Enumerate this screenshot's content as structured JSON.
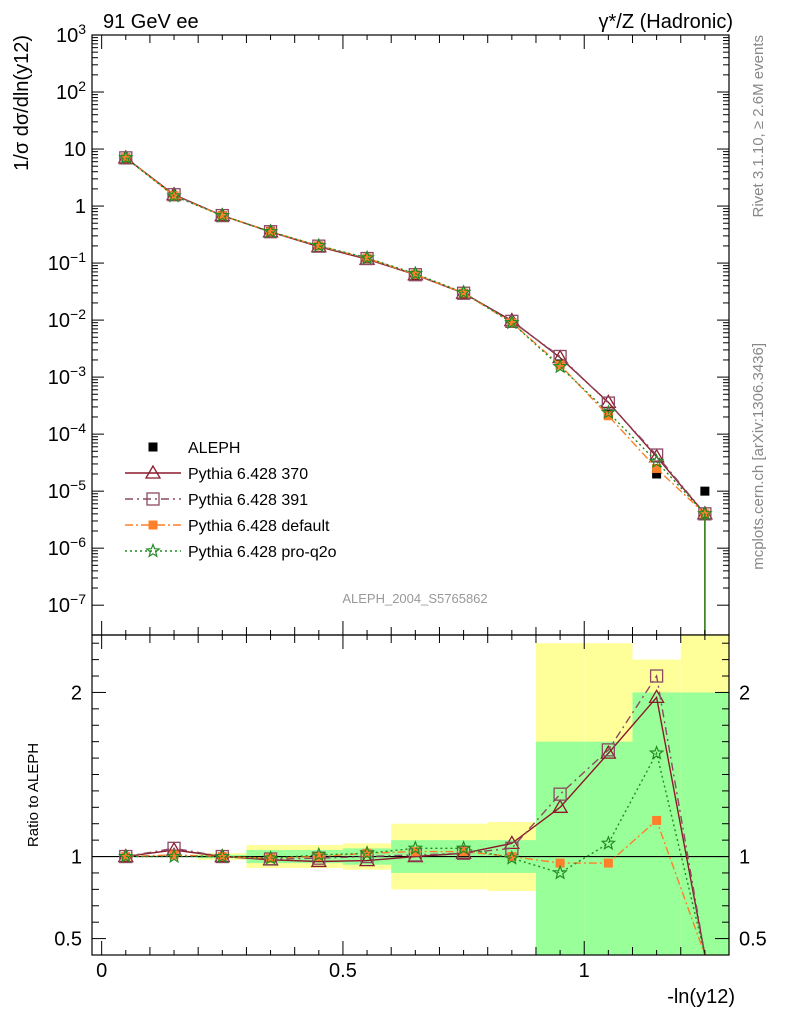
{
  "header": {
    "left": "91 GeV ee",
    "right": "γ*/Z (Hadronic)"
  },
  "side": {
    "rivet": "Rivet 3.1.10, ≥ 2.6M events",
    "url": "mcplots.cern.ch [arXiv:1306.3436]"
  },
  "watermark": "ALEPH_2004_S5765862",
  "chart_data": [
    {
      "type": "scatter",
      "panel": "main",
      "ylabel": "1/σ  dσ/dln(y12)",
      "xlabel": "-ln(y12)",
      "yscale": "log",
      "xlim": [
        -0.02,
        1.3
      ],
      "ylim": [
        3e-08,
        1000
      ],
      "y_ticks": [
        "10^-7",
        "10^-6",
        "10^-5",
        "10^-4",
        "10^-3",
        "10^-2",
        "10^-1",
        "1",
        "10",
        "10^2",
        "10^3"
      ],
      "x": [
        0.05,
        0.15,
        0.25,
        0.35,
        0.45,
        0.55,
        0.65,
        0.75,
        0.85,
        0.95,
        1.05,
        1.15,
        1.25
      ],
      "series": [
        {
          "name": "ALEPH",
          "color": "#000000",
          "marker": "filled-square",
          "values": [
            7.0,
            1.5,
            0.68,
            0.36,
            0.2,
            0.12,
            0.062,
            0.029,
            0.009,
            0.0017,
            0.00022,
            2e-05,
            1e-05
          ]
        },
        {
          "name": "Pythia 6.428 370",
          "color": "#8b1a2b",
          "marker": "open-triangle",
          "dash": "none",
          "values": [
            7.0,
            1.58,
            0.68,
            0.352,
            0.194,
            0.117,
            0.0625,
            0.0296,
            0.0098,
            0.0022,
            0.00036,
            4e-05,
            4e-06
          ]
        },
        {
          "name": "Pythia 6.428 391",
          "color": "#8b4a62",
          "marker": "open-square",
          "dash": "8 4 2 4",
          "values": [
            7.0,
            1.58,
            0.68,
            0.355,
            0.198,
            0.12,
            0.0625,
            0.0296,
            0.0095,
            0.0023,
            0.00035,
            4.3e-05,
            4e-06
          ]
        },
        {
          "name": "Pythia 6.428 default",
          "color": "#ff7f2a",
          "marker": "filled-square",
          "dash": "8 3 2 3",
          "values": [
            7.0,
            1.52,
            0.68,
            0.355,
            0.2,
            0.122,
            0.0634,
            0.0299,
            0.009,
            0.00163,
            0.00021,
            2.5e-05,
            4e-06
          ]
        },
        {
          "name": "Pythia 6.428 pro-q2o",
          "color": "#228b22",
          "marker": "star",
          "dash": "2 3",
          "values": [
            7.0,
            1.5,
            0.68,
            0.355,
            0.202,
            0.123,
            0.065,
            0.0305,
            0.009,
            0.00152,
            0.00024,
            3.3e-05,
            4e-06
          ]
        }
      ]
    },
    {
      "type": "line",
      "panel": "ratio",
      "ylabel": "Ratio to ALEPH",
      "xlabel": "-ln(y12)",
      "xlim": [
        -0.02,
        1.3
      ],
      "ylim": [
        0.4,
        2.35
      ],
      "x_ticks": [
        "0",
        "0.5",
        "1"
      ],
      "y_ticks": [
        "0.5",
        "1",
        "2"
      ],
      "bands": {
        "bins": [
          [
            0.0,
            0.1
          ],
          [
            0.1,
            0.2
          ],
          [
            0.2,
            0.3
          ],
          [
            0.3,
            0.4
          ],
          [
            0.4,
            0.5
          ],
          [
            0.5,
            0.6
          ],
          [
            0.6,
            0.7
          ],
          [
            0.7,
            0.8
          ],
          [
            0.8,
            0.9
          ],
          [
            0.9,
            1.0
          ],
          [
            1.0,
            1.1
          ],
          [
            1.1,
            1.2
          ],
          [
            1.2,
            1.3
          ]
        ],
        "green_halfwidth": [
          0.0,
          0.0,
          0.01,
          0.04,
          0.04,
          0.05,
          0.1,
          0.1,
          0.1,
          0.7,
          0.7,
          1.0,
          1.0
        ],
        "yellow_halfwidth": [
          0.0,
          0.0,
          0.02,
          0.07,
          0.07,
          0.08,
          0.2,
          0.2,
          0.21,
          1.3,
          1.3,
          1.2,
          1.4
        ]
      },
      "series": [
        {
          "name": "Pythia 6.428 370",
          "color": "#8b1a2b",
          "marker": "open-triangle",
          "values": [
            1.0,
            1.04,
            1.0,
            0.98,
            0.97,
            0.975,
            1.0,
            1.02,
            1.08,
            1.3,
            1.63,
            1.97,
            0.35
          ]
        },
        {
          "name": "Pythia 6.428 391",
          "color": "#8b4a62",
          "marker": "open-square",
          "values": [
            1.0,
            1.05,
            1.0,
            0.985,
            0.99,
            1.0,
            1.01,
            1.02,
            1.05,
            1.38,
            1.65,
            2.1,
            0.35
          ]
        },
        {
          "name": "Pythia 6.428 default",
          "color": "#ff7f2a",
          "marker": "filled-square",
          "values": [
            1.0,
            1.01,
            1.0,
            0.99,
            1.0,
            1.02,
            1.03,
            1.03,
            1.0,
            0.96,
            0.96,
            1.22,
            0.35
          ]
        },
        {
          "name": "Pythia 6.428 pro-q2o",
          "color": "#228b22",
          "marker": "star",
          "values": [
            1.0,
            1.0,
            1.0,
            0.99,
            1.01,
            1.02,
            1.05,
            1.05,
            0.99,
            0.9,
            1.08,
            1.63,
            0.35
          ]
        }
      ]
    }
  ]
}
